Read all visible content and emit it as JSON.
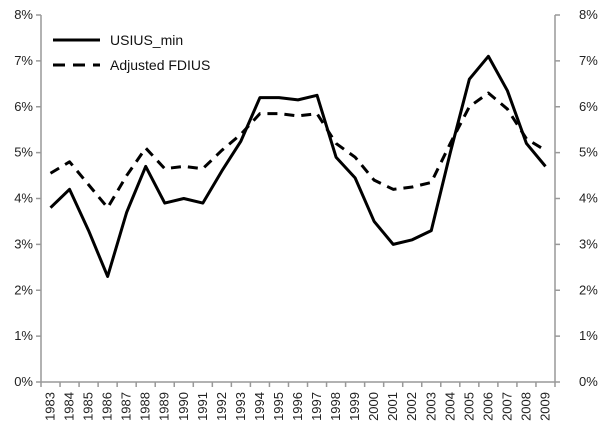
{
  "chart_data": {
    "type": "line",
    "title": "",
    "xlabel": "",
    "ylabel": "",
    "ylim": [
      0,
      8
    ],
    "y_ticks": [
      "0%",
      "1%",
      "2%",
      "3%",
      "4%",
      "5%",
      "6%",
      "7%",
      "8%"
    ],
    "y_axis_both_sides": true,
    "grid": false,
    "legend_position": "top-left",
    "categories": [
      "1983",
      "1984",
      "1985",
      "1986",
      "1987",
      "1988",
      "1989",
      "1990",
      "1991",
      "1992",
      "1993",
      "1994",
      "1995",
      "1996",
      "1997",
      "1998",
      "1999",
      "2000",
      "2001",
      "2002",
      "2003",
      "2004",
      "2005",
      "2006",
      "2007",
      "2008",
      "2009"
    ],
    "series": [
      {
        "name": "USIUS_min",
        "style": "solid",
        "color": "#000000",
        "values": [
          3.8,
          4.2,
          3.3,
          2.3,
          3.7,
          4.7,
          3.9,
          4.0,
          3.9,
          4.6,
          5.25,
          6.2,
          6.2,
          6.15,
          6.25,
          4.9,
          4.45,
          3.5,
          3.0,
          3.1,
          3.3,
          5.0,
          6.6,
          7.1,
          6.35,
          5.2,
          4.7
        ]
      },
      {
        "name": "Adjusted FDIUS",
        "style": "dashed",
        "color": "#000000",
        "values": [
          4.55,
          4.8,
          4.3,
          3.8,
          4.5,
          5.1,
          4.65,
          4.7,
          4.65,
          5.05,
          5.4,
          5.85,
          5.85,
          5.8,
          5.85,
          5.2,
          4.9,
          4.4,
          4.2,
          4.25,
          4.35,
          5.2,
          6.0,
          6.3,
          5.95,
          5.3,
          5.05
        ]
      }
    ]
  }
}
